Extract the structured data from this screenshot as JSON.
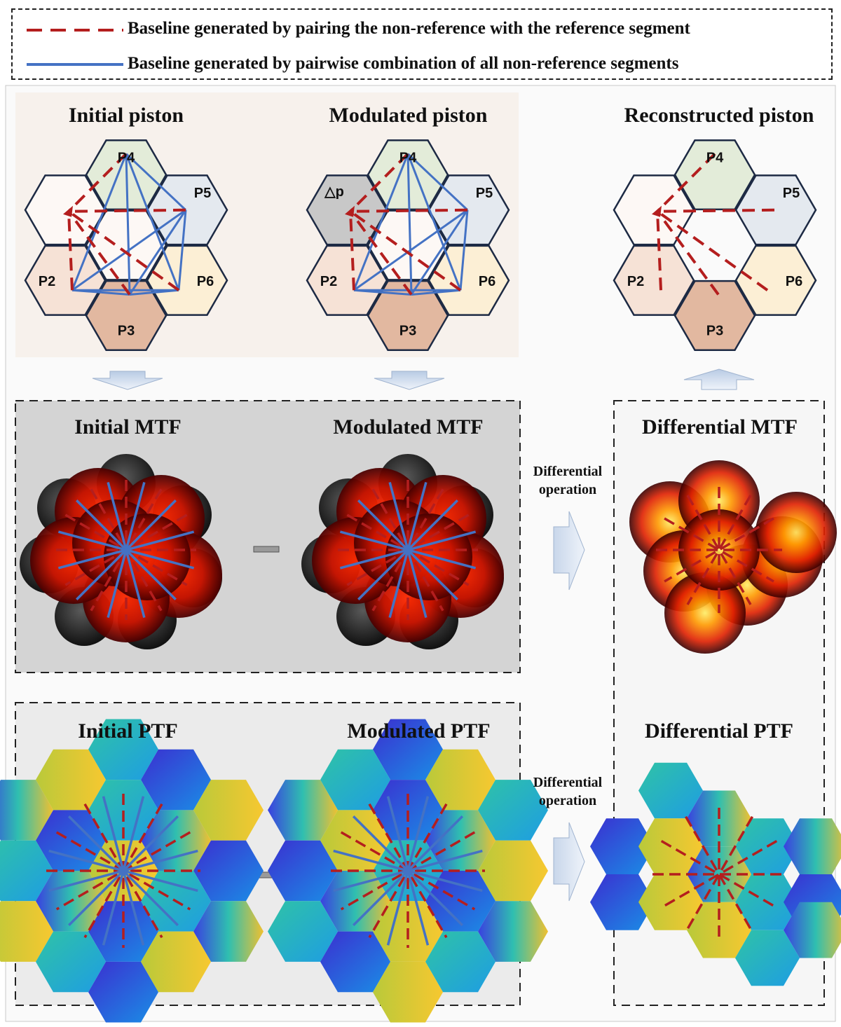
{
  "legend": {
    "dashed_label": "Baseline generated by pairing the non-reference with the reference segment",
    "solid_label": "Baseline generated by pairwise combination of all non-reference segments"
  },
  "panels": {
    "initial_piston": "Initial piston",
    "modulated_piston": "Modulated piston",
    "reconstructed_piston": "Reconstructed piston",
    "initial_mtf": "Initial MTF",
    "modulated_mtf": "Modulated MTF",
    "differential_mtf": "Differential MTF",
    "initial_ptf": "Initial PTF",
    "modulated_ptf": "Modulated PTF",
    "differential_ptf": "Differential PTF"
  },
  "operation_label_line1": "Differential",
  "operation_label_line2": "operation",
  "segments": {
    "p2": "P2",
    "p3": "P3",
    "p4": "P4",
    "p5": "P5",
    "p6": "P6",
    "delta": "△p"
  },
  "colors": {
    "dashed_line": "#b41e1e",
    "solid_line": "#4472c4",
    "p4_fill": "#e3ecd9",
    "p5_fill": "#e4e9ef",
    "p6_fill": "#fcefd5",
    "p3_fill": "#e2b8a0",
    "p2_fill": "#f6e2d6",
    "center_fill": "#fdf8f5",
    "delta_fill": "#c8c8c8"
  }
}
